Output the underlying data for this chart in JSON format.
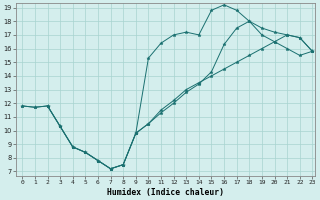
{
  "xlabel": "Humidex (Indice chaleur)",
  "bg_color": "#d4eeed",
  "line_color": "#1a7070",
  "grid_color": "#a8d4d0",
  "xlim": [
    0,
    23
  ],
  "ylim": [
    7,
    19
  ],
  "xticks": [
    0,
    1,
    2,
    3,
    4,
    5,
    6,
    7,
    8,
    9,
    10,
    11,
    12,
    13,
    14,
    15,
    16,
    17,
    18,
    19,
    20,
    21,
    22,
    23
  ],
  "yticks": [
    7,
    8,
    9,
    10,
    11,
    12,
    13,
    14,
    15,
    16,
    17,
    18,
    19
  ],
  "curve1_x": [
    0,
    1,
    2,
    3,
    4,
    5,
    6,
    7,
    8,
    9,
    10,
    11,
    12,
    13,
    14,
    15,
    16,
    17,
    18,
    19,
    20,
    21,
    22,
    23
  ],
  "curve1_y": [
    11.8,
    11.7,
    11.8,
    10.3,
    8.8,
    8.4,
    7.8,
    7.2,
    7.5,
    9.8,
    15.3,
    16.4,
    17.0,
    17.2,
    17.0,
    18.8,
    19.2,
    18.8,
    18.0,
    17.0,
    16.5,
    16.0,
    15.5,
    15.8
  ],
  "curve2_x": [
    0,
    1,
    2,
    3,
    4,
    5,
    6,
    7,
    8,
    9,
    10,
    11,
    12,
    13,
    14,
    15,
    16,
    17,
    18,
    19,
    20,
    21,
    22,
    23
  ],
  "curve2_y": [
    11.8,
    11.7,
    11.8,
    10.3,
    8.8,
    8.4,
    7.8,
    7.2,
    7.5,
    9.8,
    10.5,
    11.5,
    12.2,
    13.0,
    13.5,
    14.0,
    14.5,
    15.0,
    15.5,
    16.0,
    16.5,
    17.0,
    16.8,
    15.8
  ],
  "curve3_x": [
    2,
    3,
    4,
    5,
    6,
    7,
    8,
    9,
    10,
    11,
    12,
    13,
    14,
    15,
    16,
    17,
    18,
    19,
    20,
    21,
    22,
    23
  ],
  "curve3_y": [
    11.8,
    10.3,
    8.8,
    8.4,
    7.8,
    7.2,
    7.5,
    9.8,
    10.5,
    11.3,
    12.0,
    12.8,
    13.4,
    14.3,
    16.3,
    17.5,
    18.0,
    17.5,
    17.2,
    17.0,
    16.8,
    15.8
  ]
}
